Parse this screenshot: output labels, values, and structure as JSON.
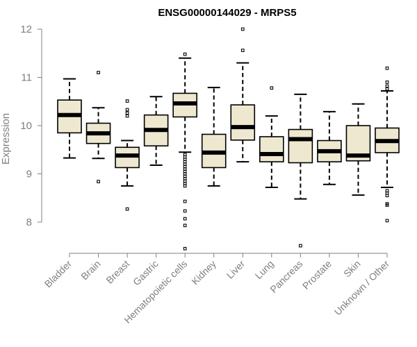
{
  "chart_data": {
    "type": "box",
    "title": "ENSG00000144029 - MRPS5",
    "xlabel": "",
    "ylabel": "Expression",
    "ylim": [
      7.4,
      12
    ],
    "yticks": [
      8,
      9,
      10,
      11,
      12
    ],
    "colors": {
      "box_fill": "#ede8cf",
      "stroke": "#000000",
      "text": "#7f7f7f"
    },
    "categories": [
      "Bladder",
      "Brain",
      "Breast",
      "Gastric",
      "Hematopoietic cells",
      "Kidney",
      "Liver",
      "Lung",
      "Pancreas",
      "Prostate",
      "Skin",
      "Unknown / Other"
    ],
    "boxes": [
      {
        "category": "Bladder",
        "whisker_low": 9.33,
        "q1": 9.85,
        "median": 10.22,
        "q3": 10.53,
        "whisker_high": 10.97,
        "outliers": []
      },
      {
        "category": "Brain",
        "whisker_low": 9.32,
        "q1": 9.63,
        "median": 9.84,
        "q3": 10.05,
        "whisker_high": 10.37,
        "outliers": [
          8.84,
          11.1
        ]
      },
      {
        "category": "Breast",
        "whisker_low": 8.75,
        "q1": 9.13,
        "median": 9.38,
        "q3": 9.55,
        "whisker_high": 9.69,
        "outliers": [
          8.27,
          10.2,
          10.26,
          10.33,
          10.51
        ]
      },
      {
        "category": "Gastric",
        "whisker_low": 9.18,
        "q1": 9.58,
        "median": 9.91,
        "q3": 10.22,
        "whisker_high": 10.6,
        "outliers": []
      },
      {
        "category": "Hematopoietic cells",
        "whisker_low": 9.45,
        "q1": 10.18,
        "median": 10.46,
        "q3": 10.67,
        "whisker_high": 11.4,
        "outliers": [
          7.45,
          7.93,
          8.07,
          8.23,
          8.43,
          8.75,
          8.8,
          8.85,
          8.9,
          8.95,
          9.0,
          9.05,
          9.1,
          9.15,
          9.2,
          9.25,
          9.3,
          9.35,
          9.4,
          11.48
        ]
      },
      {
        "category": "Kidney",
        "whisker_low": 8.75,
        "q1": 9.13,
        "median": 9.44,
        "q3": 9.82,
        "whisker_high": 10.79,
        "outliers": []
      },
      {
        "category": "Liver",
        "whisker_low": 9.25,
        "q1": 9.7,
        "median": 9.97,
        "q3": 10.43,
        "whisker_high": 11.3,
        "outliers": [
          11.56,
          12.0
        ]
      },
      {
        "category": "Lung",
        "whisker_low": 8.72,
        "q1": 9.25,
        "median": 9.41,
        "q3": 9.77,
        "whisker_high": 10.2,
        "outliers": [
          10.78
        ]
      },
      {
        "category": "Pancreas",
        "whisker_low": 8.48,
        "q1": 9.23,
        "median": 9.72,
        "q3": 9.92,
        "whisker_high": 10.65,
        "outliers": [
          7.51
        ]
      },
      {
        "category": "Prostate",
        "whisker_low": 8.78,
        "q1": 9.25,
        "median": 9.47,
        "q3": 9.69,
        "whisker_high": 10.29,
        "outliers": []
      },
      {
        "category": "Skin",
        "whisker_low": 8.56,
        "q1": 9.27,
        "median": 9.38,
        "q3": 10.0,
        "whisker_high": 10.45,
        "outliers": []
      },
      {
        "category": "Unknown / Other",
        "whisker_low": 8.72,
        "q1": 9.44,
        "median": 9.68,
        "q3": 9.95,
        "whisker_high": 10.72,
        "outliers": [
          8.03,
          8.35,
          8.38,
          8.55,
          8.6,
          8.65,
          10.76,
          10.82,
          10.9,
          11.19
        ]
      }
    ]
  }
}
